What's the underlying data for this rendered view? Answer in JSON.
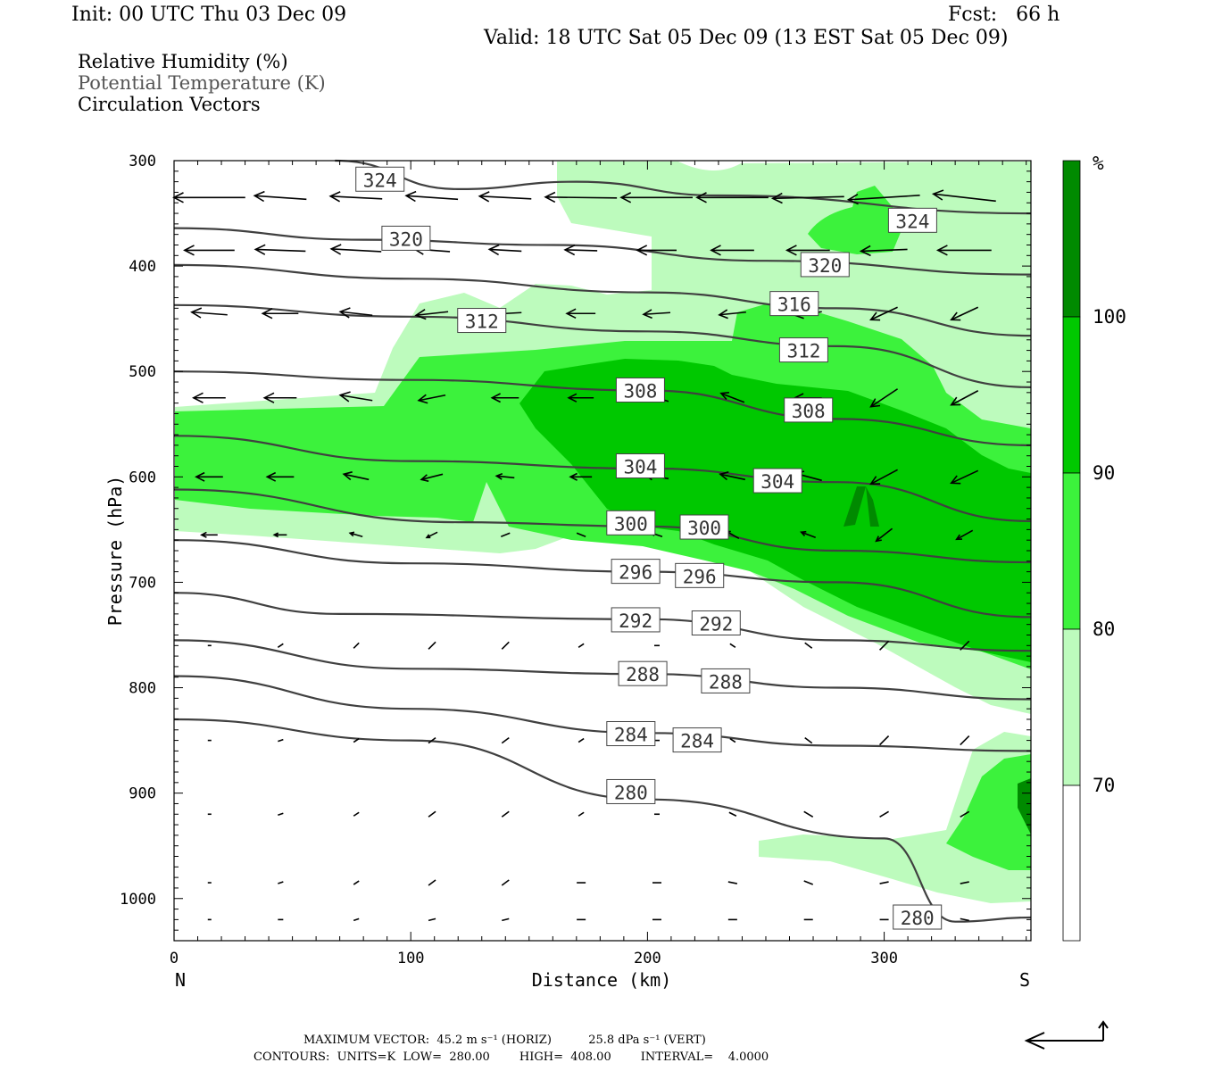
{
  "header": {
    "init": "Init: 00 UTC Thu 03 Dec 09",
    "fcst": "Fcst:   66 h",
    "valid": "Valid: 18 UTC Sat 05 Dec 09 (13 EST Sat 05 Dec 09)"
  },
  "legend": {
    "rh": "Relative Humidity (%)",
    "theta": "Potential Temperature (K)",
    "vectors": "Circulation Vectors"
  },
  "colors": {
    "rh70": "#bdfbbd",
    "rh80": "#3cf23c",
    "rh90": "#00c800",
    "rh100": "#008a00",
    "contour": "#404040"
  },
  "footer": {
    "max_vector": "MAXIMUM VECTOR:  45.2 m s⁻¹ (HORIZ)          25.8 dPa s⁻¹ (VERT)",
    "contours": "CONTOURS:  UNITS=K  LOW=  280.00        HIGH=  408.00        INTERVAL=    4.0000"
  },
  "chart_data": {
    "type": "cross-section",
    "title": "Relative Humidity (%) / Potential Temperature (K) / Circulation Vectors",
    "xlabel": "Distance (km)",
    "ylabel": "Pressure (hPa)",
    "xlim": [
      0,
      362
    ],
    "ylim": [
      1040,
      300
    ],
    "x_ticks": [
      "0",
      "100",
      "200",
      "300"
    ],
    "x_tick_values": [
      0,
      100,
      200,
      300
    ],
    "y_ticks": [
      "300",
      "400",
      "500",
      "600",
      "700",
      "800",
      "900",
      "1000"
    ],
    "y_tick_values": [
      300,
      400,
      500,
      600,
      700,
      800,
      900,
      1000
    ],
    "x_end_labels": {
      "left": "N",
      "right": "S"
    },
    "colorbar": {
      "unit": "%",
      "levels": [
        "70",
        "80",
        "90",
        "100"
      ],
      "level_values": [
        70,
        80,
        90,
        100
      ]
    },
    "theta_contours": [
      {
        "value": 324,
        "points": [
          [
            68,
            300
          ],
          [
            120,
            327
          ],
          [
            170,
            320
          ],
          [
            230,
            333
          ],
          [
            362,
            350
          ]
        ],
        "labels": [
          {
            "text": "324",
            "at": [
              87,
              318
            ]
          },
          {
            "text": "324",
            "at": [
              312,
              357
            ]
          }
        ]
      },
      {
        "value": 320,
        "points": [
          [
            0,
            364
          ],
          [
            80,
            375
          ],
          [
            160,
            380
          ],
          [
            250,
            395
          ],
          [
            362,
            408
          ]
        ],
        "labels": [
          {
            "text": "320",
            "at": [
              98,
              374
            ]
          },
          {
            "text": "320",
            "at": [
              275,
              399
            ]
          }
        ]
      },
      {
        "value": 316,
        "points": [
          [
            0,
            399
          ],
          [
            100,
            412
          ],
          [
            200,
            425
          ],
          [
            280,
            440
          ],
          [
            362,
            466
          ]
        ],
        "labels": [
          {
            "text": "316",
            "at": [
              262,
              436
            ]
          }
        ]
      },
      {
        "value": 312,
        "points": [
          [
            0,
            437
          ],
          [
            100,
            448
          ],
          [
            200,
            462
          ],
          [
            280,
            476
          ],
          [
            362,
            515
          ]
        ],
        "labels": [
          {
            "text": "312",
            "at": [
              130,
              452
            ]
          },
          {
            "text": "312",
            "at": [
              266,
              480
            ]
          }
        ]
      },
      {
        "value": 308,
        "points": [
          [
            0,
            500
          ],
          [
            100,
            508
          ],
          [
            200,
            518
          ],
          [
            280,
            545
          ],
          [
            362,
            570
          ]
        ],
        "labels": [
          {
            "text": "308",
            "at": [
              197,
              518
            ]
          },
          {
            "text": "308",
            "at": [
              268,
              537
            ]
          }
        ]
      },
      {
        "value": 304,
        "points": [
          [
            0,
            561
          ],
          [
            100,
            585
          ],
          [
            200,
            592
          ],
          [
            280,
            605
          ],
          [
            362,
            642
          ]
        ],
        "labels": [
          {
            "text": "304",
            "at": [
              197,
              590
            ]
          },
          {
            "text": "304",
            "at": [
              255,
              604
            ]
          }
        ]
      },
      {
        "value": 300,
        "points": [
          [
            0,
            612
          ],
          [
            120,
            643
          ],
          [
            200,
            647
          ],
          [
            280,
            670
          ],
          [
            362,
            681
          ]
        ],
        "labels": [
          {
            "text": "300",
            "at": [
              193,
              644
            ]
          },
          {
            "text": "300",
            "at": [
              224,
              648
            ]
          }
        ]
      },
      {
        "value": 296,
        "points": [
          [
            0,
            660
          ],
          [
            100,
            682
          ],
          [
            200,
            690
          ],
          [
            280,
            700
          ],
          [
            362,
            733
          ]
        ],
        "labels": [
          {
            "text": "296",
            "at": [
              195,
              690
            ]
          },
          {
            "text": "296",
            "at": [
              222,
              694
            ]
          }
        ]
      },
      {
        "value": 292,
        "points": [
          [
            0,
            710
          ],
          [
            70,
            730
          ],
          [
            200,
            735
          ],
          [
            280,
            755
          ],
          [
            362,
            765
          ]
        ],
        "labels": [
          {
            "text": "292",
            "at": [
              195,
              736
            ]
          },
          {
            "text": "292",
            "at": [
              229,
              739
            ]
          }
        ]
      },
      {
        "value": 288,
        "points": [
          [
            0,
            755
          ],
          [
            100,
            782
          ],
          [
            200,
            787
          ],
          [
            280,
            800
          ],
          [
            362,
            811
          ]
        ],
        "labels": [
          {
            "text": "288",
            "at": [
              198,
              787
            ]
          },
          {
            "text": "288",
            "at": [
              233,
              794
            ]
          }
        ]
      },
      {
        "value": 284,
        "points": [
          [
            0,
            789
          ],
          [
            100,
            820
          ],
          [
            200,
            843
          ],
          [
            280,
            855
          ],
          [
            362,
            860
          ]
        ],
        "labels": [
          {
            "text": "284",
            "at": [
              193,
              844
            ]
          },
          {
            "text": "284",
            "at": [
              221,
              850
            ]
          }
        ]
      },
      {
        "value": 280,
        "points": [
          [
            0,
            830
          ],
          [
            100,
            850
          ],
          [
            200,
            906
          ],
          [
            300,
            943
          ],
          [
            330,
            1022
          ],
          [
            362,
            1018
          ]
        ],
        "labels": [
          {
            "text": "280",
            "at": [
              193,
              899
            ]
          },
          {
            "text": "280",
            "at": [
              314,
              1018
            ]
          }
        ]
      }
    ]
  }
}
